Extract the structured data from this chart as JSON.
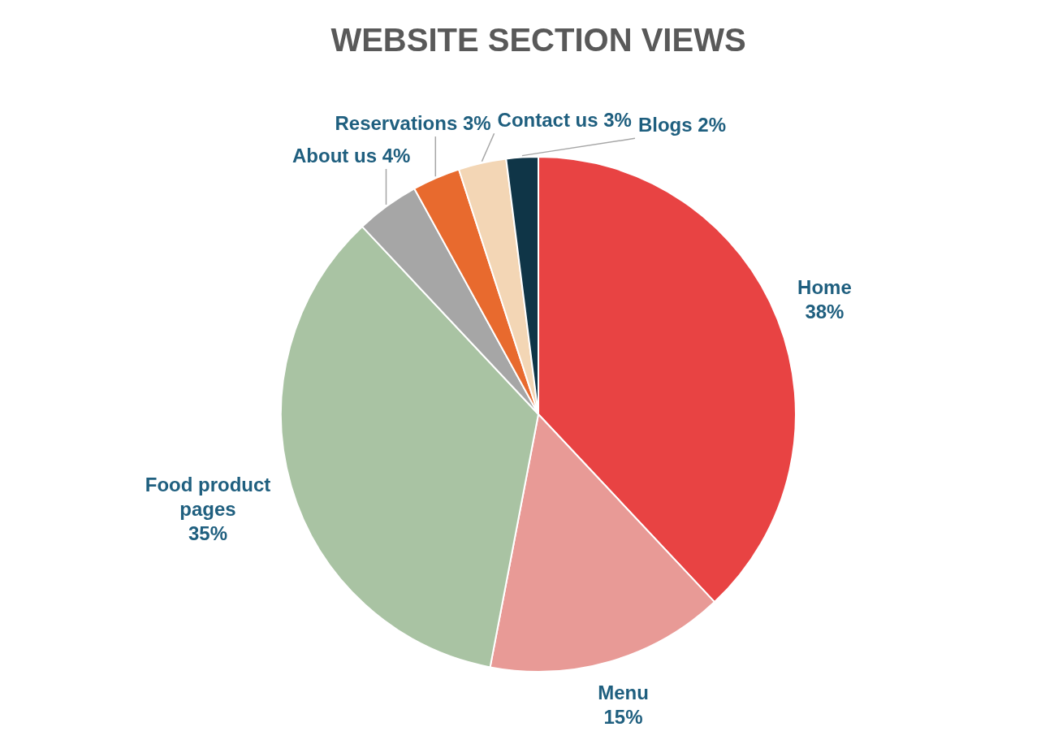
{
  "chart_data": {
    "type": "pie",
    "title": "WEBSITE SECTION VIEWS",
    "categories": [
      "Home",
      "Menu",
      "Food product pages",
      "About us",
      "Reservations",
      "Contact us",
      "Blogs"
    ],
    "values": [
      38,
      15,
      35,
      4,
      3,
      3,
      2
    ],
    "value_labels": [
      "38%",
      "15%",
      "35%",
      "4%",
      "3%",
      "3%",
      "2%"
    ],
    "colors": [
      "#e84343",
      "#e89a96",
      "#a9c3a3",
      "#a6a6a6",
      "#e86a2e",
      "#f3d6b5",
      "#0f3547"
    ],
    "legend": false
  }
}
